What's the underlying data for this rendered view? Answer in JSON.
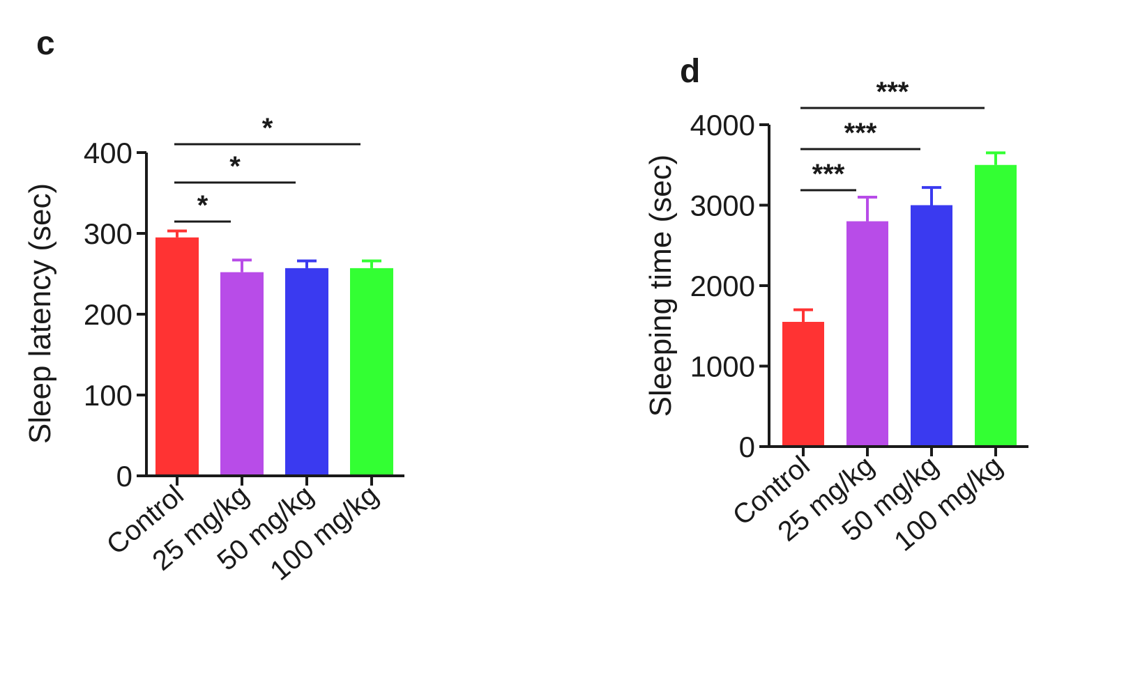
{
  "chart_data": [
    {
      "panel": "c",
      "type": "bar",
      "categories": [
        "Control",
        "25 mg/kg",
        "50 mg/kg",
        "100 mg/kg"
      ],
      "values": [
        295,
        252,
        257,
        257
      ],
      "errors": [
        8,
        15,
        9,
        9
      ],
      "colors": [
        "#ff3333",
        "#b84ce8",
        "#3a3af0",
        "#33ff33"
      ],
      "xlabel": "",
      "ylabel": "Sleep latency (sec)",
      "ylim": [
        0,
        400
      ],
      "yticks": [
        0,
        100,
        200,
        300,
        400
      ],
      "significance": [
        {
          "from": 0,
          "to": 1,
          "label": "*"
        },
        {
          "from": 0,
          "to": 2,
          "label": "*"
        },
        {
          "from": 0,
          "to": 3,
          "label": "*"
        }
      ]
    },
    {
      "panel": "d",
      "type": "bar",
      "categories": [
        "Control",
        "25 mg/kg",
        "50 mg/kg",
        "100 mg/kg"
      ],
      "values": [
        1550,
        2800,
        3000,
        3500
      ],
      "errors": [
        150,
        300,
        220,
        150
      ],
      "colors": [
        "#ff3333",
        "#b84ce8",
        "#3a3af0",
        "#33ff33"
      ],
      "xlabel": "",
      "ylabel": "Sleeping time (sec)",
      "ylim": [
        0,
        4000
      ],
      "yticks": [
        0,
        1000,
        2000,
        3000,
        4000
      ],
      "significance": [
        {
          "from": 0,
          "to": 1,
          "label": "***"
        },
        {
          "from": 0,
          "to": 2,
          "label": "***"
        },
        {
          "from": 0,
          "to": 3,
          "label": "***"
        }
      ]
    }
  ]
}
